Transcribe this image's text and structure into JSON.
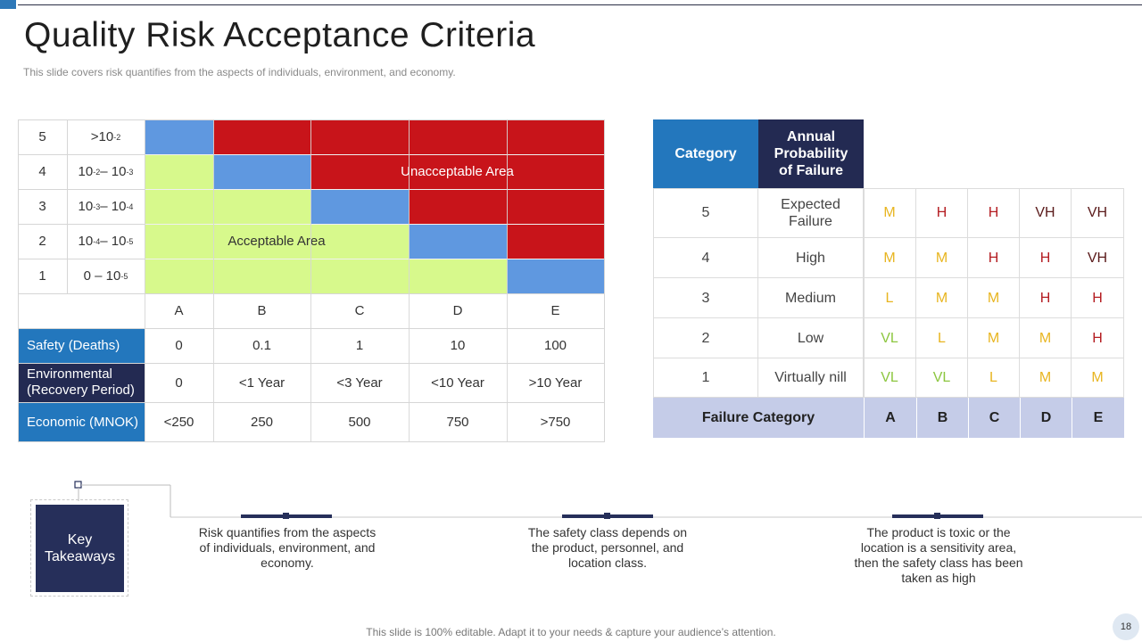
{
  "slide": {
    "title": "Quality Risk Acceptance Criteria",
    "subtitle": "This slide covers risk quantifies from the aspects of individuals, environment, and economy.",
    "footer": "This slide is 100% editable. Adapt it to your needs & capture your audience’s attention.",
    "page_number": "18"
  },
  "risk_matrix": {
    "rows": [
      {
        "level": "5",
        "range_html": ">10<sup>-2</sup>"
      },
      {
        "level": "4",
        "range_html": "10<sup>-2</sup> – 10<sup>-3</sup>"
      },
      {
        "level": "3",
        "range_html": "10<sup>-3</sup> – 10<sup>-4</sup>"
      },
      {
        "level": "2",
        "range_html": "10<sup>-4</sup> – 10<sup>-5</sup>"
      },
      {
        "level": "1",
        "range_html": "0 – 10<sup>-5</sup>"
      }
    ],
    "unacceptable_label": "Unacceptable Area",
    "acceptable_label": "Acceptable Area",
    "columns": [
      "A",
      "B",
      "C",
      "D",
      "E"
    ],
    "consequence_rows": [
      {
        "label": "Safety (Deaths)",
        "values": [
          "0",
          "0.1",
          "1",
          "10",
          "100"
        ]
      },
      {
        "label": "Environmental (Recovery Period)",
        "values": [
          "0",
          "<1 Year",
          "<3 Year",
          "<10 Year",
          ">10 Year"
        ]
      },
      {
        "label": "Economic (MNOK)",
        "values": [
          "<250",
          "250",
          "500",
          "750",
          ">750"
        ]
      }
    ]
  },
  "category_matrix": {
    "header_category": "Category",
    "header_probability": "Annual Probability of Failure",
    "rows": [
      {
        "num": "5",
        "name": "Expected Failure",
        "levels": [
          "M",
          "H",
          "H",
          "VH",
          "VH"
        ]
      },
      {
        "num": "4",
        "name": "High",
        "levels": [
          "M",
          "M",
          "H",
          "H",
          "VH"
        ]
      },
      {
        "num": "3",
        "name": "Medium",
        "levels": [
          "L",
          "M",
          "M",
          "H",
          "H"
        ]
      },
      {
        "num": "2",
        "name": "Low",
        "levels": [
          "VL",
          "L",
          "M",
          "M",
          "H"
        ]
      },
      {
        "num": "1",
        "name": "Virtually nill",
        "levels": [
          "VL",
          "VL",
          "L",
          "M",
          "M"
        ]
      }
    ],
    "footer_label": "Failure Category",
    "footer_columns": [
      "A",
      "B",
      "C",
      "D",
      "E"
    ]
  },
  "takeaways": {
    "label": "Key Takeaways",
    "items": [
      "Risk quantifies from the aspects of individuals, environment, and economy.",
      "The safety class depends on the product, personnel, and location class.",
      "The product is toxic or the location is a sensitivity area, then the safety class has been taken as high"
    ]
  }
}
